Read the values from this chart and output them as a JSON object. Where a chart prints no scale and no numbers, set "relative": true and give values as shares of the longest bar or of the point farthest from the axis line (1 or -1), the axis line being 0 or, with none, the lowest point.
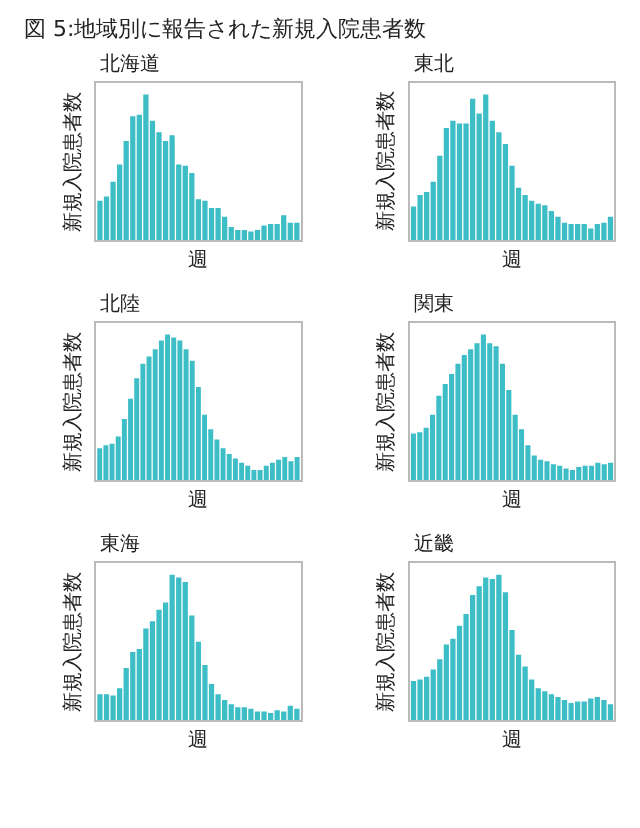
{
  "chart_data": [
    {
      "type": "other",
      "title": "図 5:地域別に報告された新規入院患者数"
    },
    {
      "type": "bar",
      "title": "北海道",
      "xlabel": "週",
      "ylabel": "新規入院患者数",
      "relative": true,
      "tick_labels": false,
      "color": "#3dbdc6",
      "categories": [
        null,
        null,
        null,
        null,
        null,
        null,
        null,
        null,
        null,
        null,
        null,
        null,
        null,
        null,
        null,
        null,
        null,
        null,
        null,
        null,
        null,
        null,
        null,
        null,
        null,
        null,
        null,
        null,
        null,
        null,
        null
      ],
      "values": [
        0.27,
        0.3,
        0.4,
        0.52,
        0.68,
        0.85,
        0.86,
        1.0,
        0.82,
        0.74,
        0.68,
        0.72,
        0.52,
        0.51,
        0.46,
        0.28,
        0.27,
        0.22,
        0.22,
        0.16,
        0.09,
        0.07,
        0.07,
        0.06,
        0.07,
        0.1,
        0.11,
        0.11,
        0.17,
        0.12,
        0.12
      ]
    },
    {
      "type": "bar",
      "title": "東北",
      "xlabel": "週",
      "ylabel": "新規入院患者数",
      "relative": true,
      "tick_labels": false,
      "color": "#3dbdc6",
      "categories": [
        null,
        null,
        null,
        null,
        null,
        null,
        null,
        null,
        null,
        null,
        null,
        null,
        null,
        null,
        null,
        null,
        null,
        null,
        null,
        null,
        null,
        null,
        null,
        null,
        null,
        null,
        null,
        null,
        null,
        null,
        null
      ],
      "values": [
        0.23,
        0.31,
        0.33,
        0.4,
        0.58,
        0.77,
        0.82,
        0.8,
        0.8,
        0.97,
        0.87,
        1.0,
        0.82,
        0.74,
        0.66,
        0.51,
        0.36,
        0.31,
        0.27,
        0.25,
        0.24,
        0.2,
        0.16,
        0.12,
        0.11,
        0.11,
        0.11,
        0.08,
        0.11,
        0.12,
        0.16
      ]
    },
    {
      "type": "bar",
      "title": "北陸",
      "xlabel": "週",
      "ylabel": "新規入院患者数",
      "relative": true,
      "tick_labels": false,
      "color": "#3dbdc6",
      "categories": [
        null,
        null,
        null,
        null,
        null,
        null,
        null,
        null,
        null,
        null,
        null,
        null,
        null,
        null,
        null,
        null,
        null,
        null,
        null,
        null,
        null,
        null,
        null,
        null,
        null,
        null,
        null,
        null,
        null,
        null,
        null,
        null,
        null
      ],
      "values": [
        0.22,
        0.24,
        0.25,
        0.3,
        0.42,
        0.56,
        0.7,
        0.8,
        0.85,
        0.9,
        0.96,
        1.0,
        0.98,
        0.96,
        0.9,
        0.82,
        0.64,
        0.45,
        0.35,
        0.28,
        0.22,
        0.18,
        0.15,
        0.12,
        0.1,
        0.07,
        0.07,
        0.1,
        0.12,
        0.14,
        0.16,
        0.13,
        0.16
      ]
    },
    {
      "type": "bar",
      "title": "関東",
      "xlabel": "週",
      "ylabel": "新規入院患者数",
      "relative": true,
      "tick_labels": false,
      "color": "#3dbdc6",
      "categories": [
        null,
        null,
        null,
        null,
        null,
        null,
        null,
        null,
        null,
        null,
        null,
        null,
        null,
        null,
        null,
        null,
        null,
        null,
        null,
        null,
        null,
        null,
        null,
        null,
        null,
        null,
        null,
        null,
        null,
        null,
        null,
        null
      ],
      "values": [
        0.32,
        0.33,
        0.36,
        0.45,
        0.58,
        0.66,
        0.73,
        0.8,
        0.86,
        0.9,
        0.94,
        1.0,
        0.94,
        0.92,
        0.8,
        0.62,
        0.45,
        0.35,
        0.24,
        0.17,
        0.14,
        0.13,
        0.11,
        0.1,
        0.08,
        0.07,
        0.09,
        0.1,
        0.1,
        0.12,
        0.11,
        0.12
      ]
    },
    {
      "type": "bar",
      "title": "東海",
      "xlabel": "週",
      "ylabel": "新規入院患者数",
      "relative": true,
      "tick_labels": false,
      "color": "#3dbdc6",
      "categories": [
        null,
        null,
        null,
        null,
        null,
        null,
        null,
        null,
        null,
        null,
        null,
        null,
        null,
        null,
        null,
        null,
        null,
        null,
        null,
        null,
        null,
        null,
        null,
        null,
        null,
        null,
        null,
        null,
        null,
        null,
        null
      ],
      "values": [
        0.18,
        0.18,
        0.17,
        0.22,
        0.36,
        0.47,
        0.49,
        0.63,
        0.68,
        0.76,
        0.81,
        1.0,
        0.98,
        0.95,
        0.72,
        0.54,
        0.38,
        0.25,
        0.18,
        0.14,
        0.11,
        0.09,
        0.09,
        0.08,
        0.06,
        0.06,
        0.05,
        0.07,
        0.06,
        0.1,
        0.08
      ]
    },
    {
      "type": "bar",
      "title": "近畿",
      "xlabel": "週",
      "ylabel": "新規入院患者数",
      "relative": true,
      "tick_labels": false,
      "color": "#3dbdc6",
      "categories": [
        null,
        null,
        null,
        null,
        null,
        null,
        null,
        null,
        null,
        null,
        null,
        null,
        null,
        null,
        null,
        null,
        null,
        null,
        null,
        null,
        null,
        null,
        null,
        null,
        null,
        null,
        null,
        null,
        null,
        null,
        null
      ],
      "values": [
        0.27,
        0.28,
        0.3,
        0.35,
        0.42,
        0.52,
        0.56,
        0.65,
        0.73,
        0.86,
        0.92,
        0.98,
        0.97,
        1.0,
        0.88,
        0.62,
        0.45,
        0.37,
        0.28,
        0.22,
        0.2,
        0.18,
        0.16,
        0.14,
        0.12,
        0.13,
        0.13,
        0.15,
        0.16,
        0.14,
        0.11
      ]
    }
  ]
}
